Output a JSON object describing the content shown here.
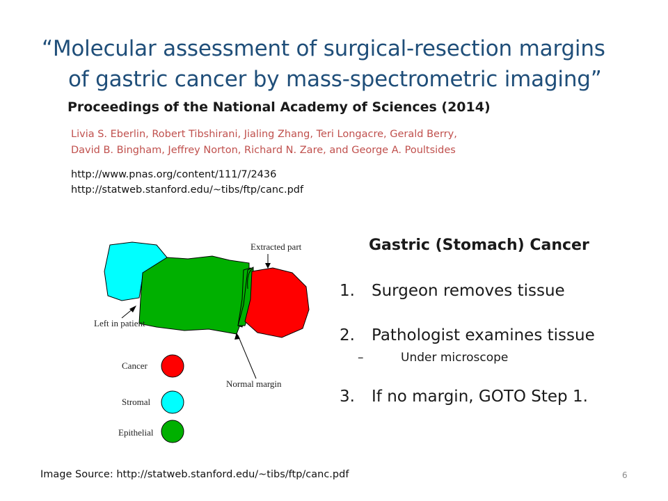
{
  "slide": {
    "title_line1": "“Molecular assessment of surgical-resection margins",
    "title_line2": "of gastric cancer by mass-spectrometric imaging”",
    "journal": "Proceedings of the National Academy of Sciences (2014)",
    "authors_line1": "Livia S. Eberlin, Robert Tibshirani, Jialing Zhang, Teri Longacre, Gerald Berry,",
    "authors_line2": "David B. Bingham, Jeffrey Norton, Richard N. Zare, and George A. Poultsides",
    "link1": "http://www.pnas.org/content/111/7/2436",
    "link2": "http://statweb.stanford.edu/~tibs/ftp/canc.pdf",
    "image_source": "Image Source: http://statweb.stanford.edu/~tibs/ftp/canc.pdf",
    "page_number": "6"
  },
  "figure": {
    "label_extracted": "Extracted part",
    "label_left": "Left in patient",
    "label_normal": "Normal margin",
    "legend": [
      {
        "label": "Cancer",
        "color": "#ff0000"
      },
      {
        "label": "Stromal",
        "color": "#00ffff"
      },
      {
        "label": "Epithelial",
        "color": "#00b000"
      }
    ]
  },
  "panel": {
    "title": "Gastric (Stomach) Cancer",
    "step1_num": "1.",
    "step1": "Surgeon removes tissue",
    "step2_num": "2.",
    "step2": "Pathologist examines tissue",
    "sub_dash": "–",
    "sub": "Under microscope",
    "step3_num": "3.",
    "step3": "If no margin, GOTO Step 1."
  }
}
